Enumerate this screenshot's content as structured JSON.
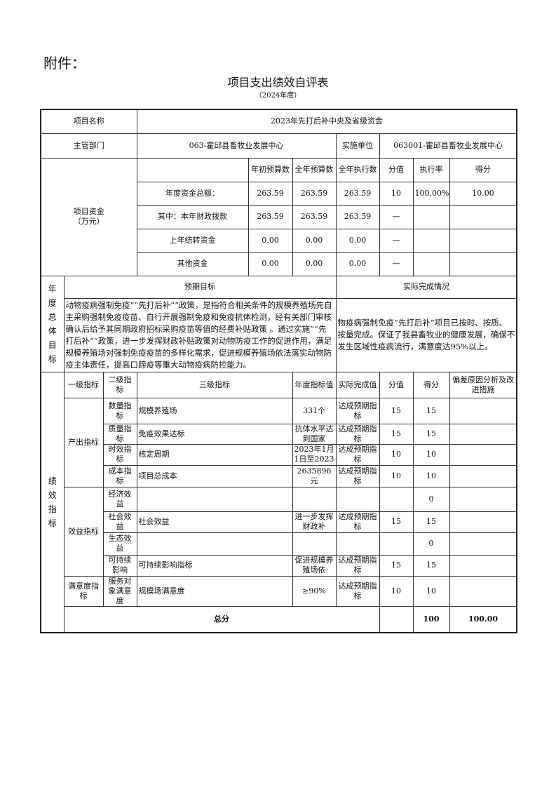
{
  "attachment": "附件：",
  "title": "项目支出绩效自评表",
  "subtitle": "（2024年度）",
  "project": {
    "name_label": "项目名称",
    "name": "2023年先打后补中央及省级资金",
    "dept_label": "主管部门",
    "dept": "063-霍邱县畜牧业发展中心",
    "impl_label": "实施单位",
    "impl": "063001-霍邱县畜牧业发展中心"
  },
  "funds": {
    "label": "项目资金（万元）",
    "headers": [
      "年初预算数",
      "全年预算数",
      "全年执行数",
      "分值",
      "执行率",
      "得分"
    ],
    "rows": [
      {
        "label": "年度资金总额：",
        "cells": [
          "263.59",
          "263.59",
          "263.59",
          "10",
          "100.00%",
          "10.00"
        ]
      },
      {
        "label": "其中：本年财政拨款",
        "cells": [
          "263.59",
          "263.59",
          "263.59",
          "—",
          "",
          ""
        ]
      },
      {
        "label": "上年结转资金",
        "cells": [
          "0.00",
          "0.00",
          "0.00",
          "—",
          "",
          ""
        ]
      },
      {
        "label": "其他资金",
        "cells": [
          "0.00",
          "0.00",
          "0.00",
          "—",
          "",
          ""
        ]
      }
    ]
  },
  "goals": {
    "label": "年度总体目标",
    "expected_label": "预期目标",
    "actual_label": "实际完成情况",
    "expected": "动物疫病强制免疫““先打后补””政策，是指符合相关条件的规模养殖场先自主采购强制免疫疫苗、自行开展强制免疫和免疫抗体检测，经有关部门审核确认后给予其同期政府招标采购疫苗等值的经费补贴政策 。通过实施““先打后补””政策，进一步发挥财政补贴政策对动物防疫工作的促进作用，满足规模养殖场对强制免疫疫苗的多样化需求，促进规模养殖场依法落实动物防疫主体责任，提高口蹄疫等重大动物疫病防控能力。",
    "actual": "物疫病强制免疫“先打后补”项目已按时、按质、按量完成。保证了我县畜牧业的健康发展，确保不发生区域性疫病流行，满意度达95%以上。"
  },
  "indicators": {
    "label": "绩效指标",
    "headers": [
      "一级指标",
      "二级指标",
      "三级指标",
      "年度指标值",
      "实际完成值",
      "分值",
      "得分",
      "偏差原因分析及改进措施"
    ],
    "groups": [
      "产出指标",
      "效益指标",
      "满意度指标"
    ],
    "rows": [
      [
        "数量指标",
        "规模养殖场",
        "331个",
        "达成预期指标",
        "15",
        "15",
        ""
      ],
      [
        "质量指标",
        "免疫效果达标",
        "抗体水平达到国家",
        "达成预期指标",
        "15",
        "15",
        ""
      ],
      [
        "时效指标",
        "核定周期",
        "2023年1月1日至2023",
        "达成预期指标",
        "10",
        "10",
        ""
      ],
      [
        "成本指标",
        "项目总成本",
        "2635896元",
        "达成预期指标",
        "10",
        "10",
        ""
      ],
      [
        "经济效益",
        "",
        "",
        "",
        "",
        "0",
        ""
      ],
      [
        "社会效益",
        "社会效益",
        "进一步发挥财政补",
        "达成预期指标",
        "15",
        "15",
        ""
      ],
      [
        "生态效益",
        "",
        "",
        "",
        "",
        "0",
        ""
      ],
      [
        "可持续影响",
        "可持续影响指标",
        "促进规模养殖场依",
        "达成预期指标",
        "15",
        "15",
        ""
      ],
      [
        "服务对象满意度",
        "规模场满意度",
        "≥90%",
        "达成预期指标",
        "10",
        "10",
        ""
      ]
    ]
  },
  "total": {
    "label": "总分",
    "actual": "",
    "score_value": "100",
    "score": "100.00",
    "note": ""
  }
}
